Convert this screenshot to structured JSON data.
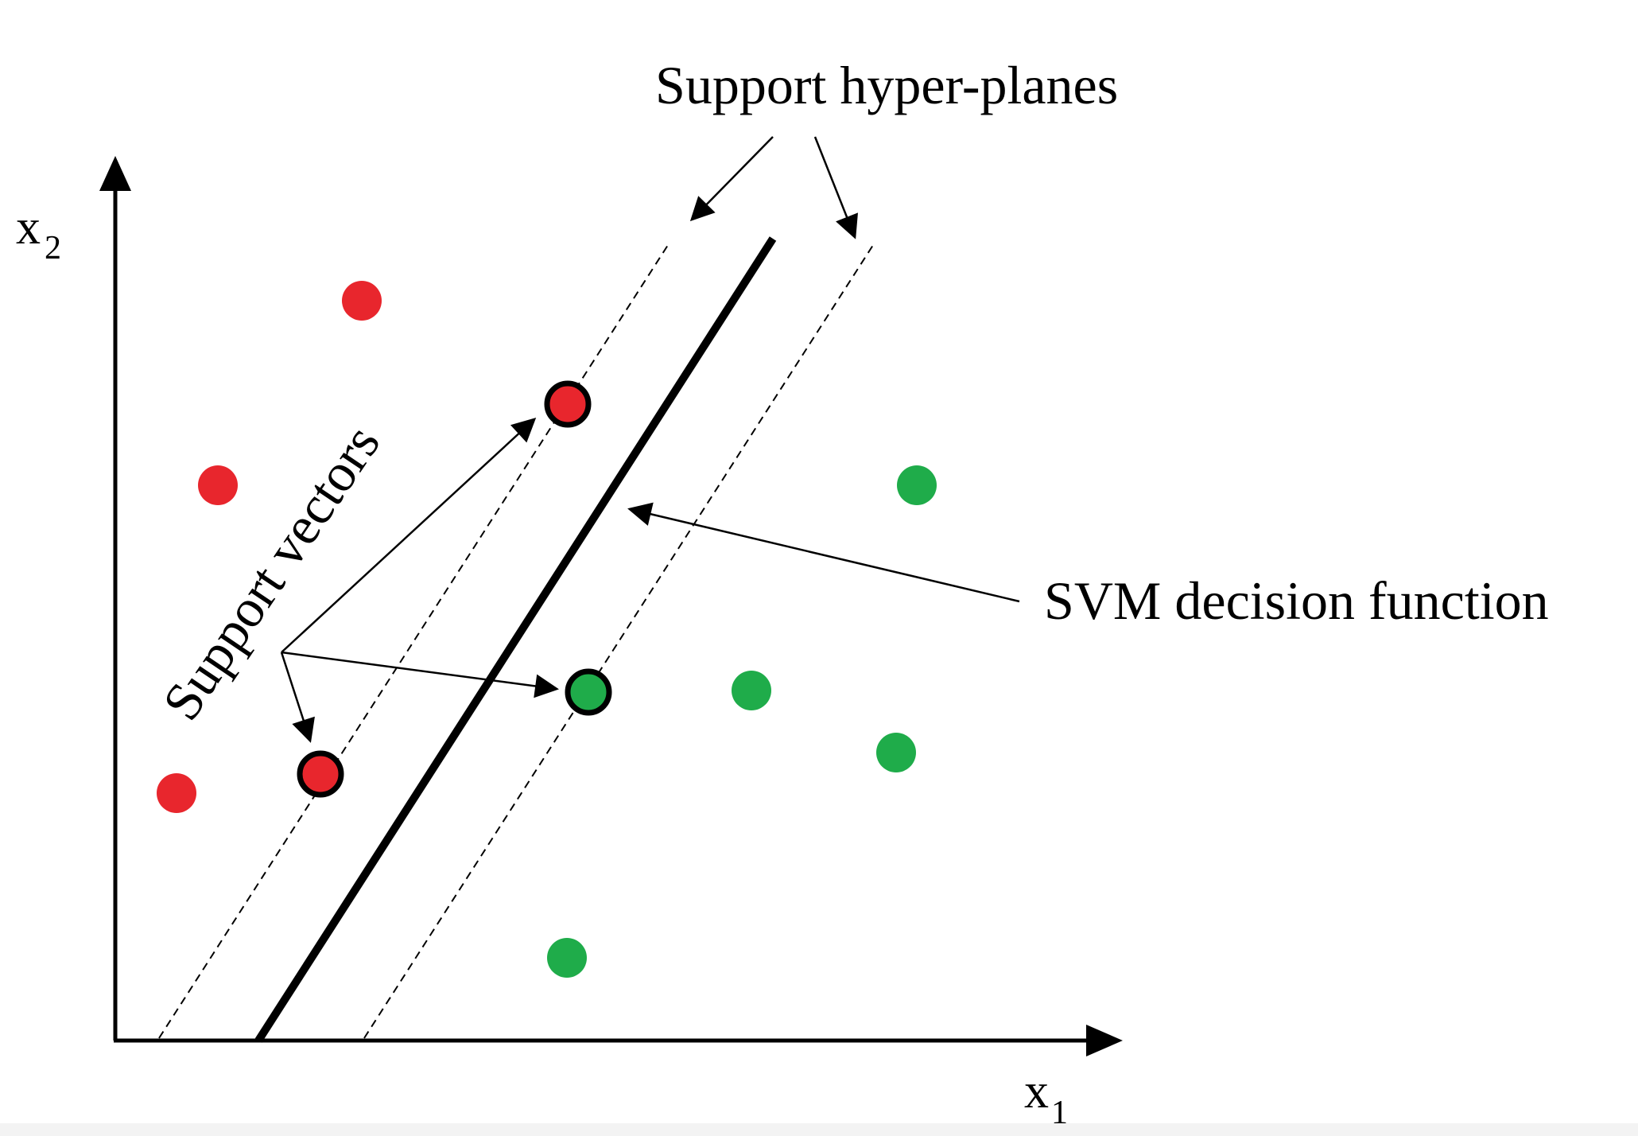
{
  "labels": {
    "support_hyperplanes": "Support hyper-planes",
    "support_vectors": "Support vectors",
    "decision_function": "SVM decision function",
    "x1_axis": "x",
    "x1_sub": "1",
    "x2_axis": "x",
    "x2_sub": "2"
  },
  "colors": {
    "class_a": "#e8262d",
    "class_b": "#1fac4a",
    "line": "#000000"
  }
}
